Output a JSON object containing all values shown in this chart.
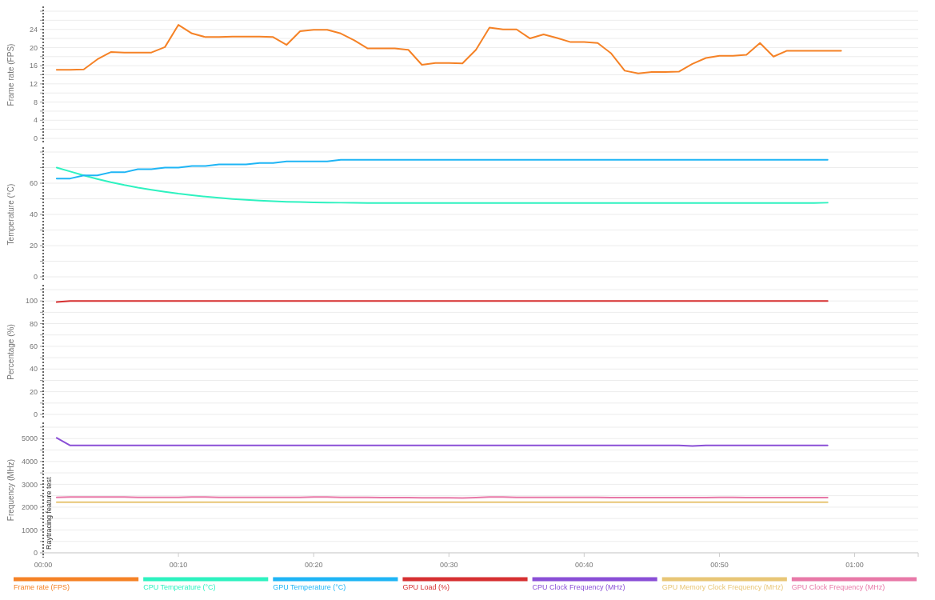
{
  "chart_data": [
    {
      "type": "line",
      "ylabel": "Frame rate (FPS)",
      "xlim": [
        0,
        64.7
      ],
      "ylim": [
        0,
        28
      ],
      "yticks": [
        0,
        {
          "value": 2,
          "label": null
        },
        4,
        {
          "value": 6,
          "label": null
        },
        8,
        {
          "value": 10,
          "label": null
        },
        12,
        {
          "value": 14,
          "label": null
        },
        16,
        {
          "value": 18,
          "label": null
        },
        20,
        {
          "value": 22,
          "label": null
        },
        24,
        {
          "value": 26,
          "label": null
        },
        {
          "value": 28,
          "label": null
        }
      ],
      "grid": "y",
      "legend": "bottom",
      "tick_labels": "y",
      "marker": "none",
      "ref_lines": [
        {
          "axis": "x",
          "value": 0,
          "line_style": "dotted",
          "color": "#333333"
        }
      ],
      "x": [
        1,
        2,
        3,
        4,
        5,
        6,
        7,
        8,
        9,
        10,
        11,
        12,
        13,
        14,
        15,
        16,
        17,
        18,
        19,
        20,
        21,
        22,
        23,
        24,
        25,
        26,
        27,
        28,
        29,
        30,
        31,
        32,
        33,
        34,
        35,
        36,
        37,
        38,
        39,
        40,
        41,
        42,
        43,
        44,
        45,
        46,
        47,
        48,
        49,
        50,
        51,
        52,
        53,
        54,
        55,
        56,
        57,
        58,
        59
      ],
      "series": [
        {
          "name": "Frame rate (FPS)",
          "color": "#f58226",
          "values": [
            15.1,
            15.1,
            15.2,
            17.4,
            19.0,
            18.9,
            18.9,
            18.9,
            20.1,
            25.0,
            23.1,
            22.3,
            22.3,
            22.4,
            22.4,
            22.4,
            22.3,
            20.6,
            23.6,
            23.9,
            23.9,
            23.1,
            21.6,
            19.8,
            19.8,
            19.8,
            19.5,
            16.2,
            16.6,
            16.6,
            16.5,
            19.5,
            24.4,
            24.0,
            24.0,
            22.0,
            22.9,
            22.1,
            21.2,
            21.2,
            21.0,
            18.7,
            14.9,
            14.3,
            14.6,
            14.6,
            14.7,
            16.4,
            17.7,
            18.2,
            18.2,
            18.4,
            21.0,
            18.0,
            19.3,
            19.3,
            19.3,
            19.3,
            19.3
          ]
        }
      ]
    },
    {
      "type": "line",
      "ylabel": "Temperature (°C)",
      "xlim": [
        0,
        64.7
      ],
      "ylim": [
        0,
        80
      ],
      "yticks": [
        0,
        {
          "value": 10,
          "label": null
        },
        20,
        {
          "value": 30,
          "label": null
        },
        40,
        {
          "value": 50,
          "label": null
        },
        60,
        {
          "value": 70,
          "label": null
        },
        {
          "value": 80,
          "label": null
        }
      ],
      "grid": "y",
      "legend": "bottom",
      "tick_labels": "y",
      "marker": "none",
      "ref_lines": [
        {
          "axis": "x",
          "value": 0,
          "line_style": "dotted",
          "color": "#333333"
        }
      ],
      "x": [
        1,
        2,
        3,
        4,
        5,
        6,
        7,
        8,
        9,
        10,
        11,
        12,
        13,
        14,
        15,
        16,
        17,
        18,
        19,
        20,
        21,
        22,
        23,
        24,
        25,
        26,
        27,
        28,
        29,
        30,
        31,
        32,
        33,
        34,
        35,
        36,
        37,
        38,
        39,
        40,
        41,
        42,
        43,
        44,
        45,
        46,
        47,
        48,
        49,
        50,
        51,
        52,
        53,
        54,
        55,
        56,
        57,
        58
      ],
      "series": [
        {
          "name": "CPU Temperature (°C)",
          "color": "#2ef2c0",
          "values": [
            70,
            67.5,
            65,
            62.7,
            60.6,
            58.8,
            57.2,
            55.8,
            54.5,
            53.3,
            52.3,
            51.4,
            50.6,
            49.9,
            49.3,
            48.8,
            48.4,
            48.1,
            47.9,
            47.7,
            47.6,
            47.5,
            47.4,
            47.3,
            47.3,
            47.3,
            47.3,
            47.3,
            47.3,
            47.3,
            47.3,
            47.3,
            47.3,
            47.3,
            47.3,
            47.3,
            47.3,
            47.3,
            47.3,
            47.3,
            47.3,
            47.3,
            47.3,
            47.3,
            47.3,
            47.3,
            47.3,
            47.3,
            47.3,
            47.3,
            47.3,
            47.3,
            47.3,
            47.3,
            47.3,
            47.3,
            47.3,
            47.5
          ]
        },
        {
          "name": "GPU Temperature (°C)",
          "color": "#1fb5f5",
          "values": [
            63,
            63,
            65,
            65,
            67,
            67,
            69,
            69,
            70,
            70,
            71,
            71,
            72,
            72,
            72,
            73,
            73,
            74,
            74,
            74,
            74,
            75,
            75,
            75,
            75,
            75,
            75,
            75,
            75,
            75,
            75,
            75,
            75,
            75,
            75,
            75,
            75,
            75,
            75,
            75,
            75,
            75,
            75,
            75,
            75,
            75,
            75,
            75,
            75,
            75,
            75,
            75,
            75,
            75,
            75,
            75,
            75,
            75
          ]
        }
      ]
    },
    {
      "type": "line",
      "ylabel": "Percentage (%)",
      "xlim": [
        0,
        64.7
      ],
      "ylim": [
        0,
        110
      ],
      "yticks": [
        0,
        {
          "value": 10,
          "label": null
        },
        20,
        {
          "value": 30,
          "label": null
        },
        40,
        {
          "value": 50,
          "label": null
        },
        60,
        {
          "value": 70,
          "label": null
        },
        80,
        {
          "value": 90,
          "label": null
        },
        100,
        {
          "value": 110,
          "label": null
        }
      ],
      "grid": "y",
      "legend": "bottom",
      "tick_labels": "y",
      "marker": "none",
      "ref_lines": [
        {
          "axis": "x",
          "value": 0,
          "line_style": "dotted",
          "color": "#333333"
        }
      ],
      "x": [
        1,
        2,
        3,
        4,
        5,
        6,
        7,
        8,
        9,
        10,
        11,
        12,
        13,
        14,
        15,
        16,
        17,
        18,
        19,
        20,
        21,
        22,
        23,
        24,
        25,
        26,
        27,
        28,
        29,
        30,
        31,
        32,
        33,
        34,
        35,
        36,
        37,
        38,
        39,
        40,
        41,
        42,
        43,
        44,
        45,
        46,
        47,
        48,
        49,
        50,
        51,
        52,
        53,
        54,
        55,
        56,
        57,
        58
      ],
      "series": [
        {
          "name": "GPU Load (%)",
          "color": "#d63031",
          "values": [
            99,
            100,
            100,
            100,
            100,
            100,
            100,
            100,
            100,
            100,
            100,
            100,
            100,
            100,
            100,
            100,
            100,
            100,
            100,
            100,
            100,
            100,
            100,
            100,
            100,
            100,
            100,
            100,
            100,
            100,
            100,
            100,
            100,
            100,
            100,
            100,
            100,
            100,
            100,
            100,
            100,
            100,
            100,
            100,
            100,
            100,
            100,
            100,
            100,
            100,
            100,
            100,
            100,
            100,
            100,
            100,
            100,
            100
          ]
        }
      ]
    },
    {
      "type": "line",
      "ylabel": "Frequency (MHz)",
      "xlim": [
        0,
        64.7
      ],
      "xticks": [
        {
          "value": 0,
          "label": "00:00"
        },
        {
          "value": 10,
          "label": "00:10"
        },
        {
          "value": 20,
          "label": "00:20"
        },
        {
          "value": 30,
          "label": "00:30"
        },
        {
          "value": 40,
          "label": "00:40"
        },
        {
          "value": 50,
          "label": "00:50"
        },
        {
          "value": 60,
          "label": "01:00"
        }
      ],
      "ylim": [
        0,
        5500
      ],
      "yticks": [
        0,
        {
          "value": 500,
          "label": null
        },
        1000,
        {
          "value": 1500,
          "label": null
        },
        2000,
        {
          "value": 2500,
          "label": null
        },
        3000,
        {
          "value": 3500,
          "label": null
        },
        4000,
        {
          "value": 4500,
          "label": null
        },
        5000,
        {
          "value": 5500,
          "label": null
        }
      ],
      "grid": "y",
      "legend": "bottom",
      "marker": "none",
      "ref_lines": [
        {
          "axis": "x",
          "value": 0,
          "label": "Raytracing feature test",
          "line_style": "dotted",
          "color": "#333333"
        }
      ],
      "x": [
        1,
        2,
        3,
        4,
        5,
        6,
        7,
        8,
        9,
        10,
        11,
        12,
        13,
        14,
        15,
        16,
        17,
        18,
        19,
        20,
        21,
        22,
        23,
        24,
        25,
        26,
        27,
        28,
        29,
        30,
        31,
        32,
        33,
        34,
        35,
        36,
        37,
        38,
        39,
        40,
        41,
        42,
        43,
        44,
        45,
        46,
        47,
        48,
        49,
        50,
        51,
        52,
        53,
        54,
        55,
        56,
        57,
        58
      ],
      "series": [
        {
          "name": "CPU Clock Frequency (MHz)",
          "color": "#8a4fd6",
          "values": [
            5030,
            4700,
            4700,
            4700,
            4700,
            4700,
            4700,
            4700,
            4700,
            4700,
            4700,
            4700,
            4700,
            4700,
            4700,
            4700,
            4700,
            4700,
            4700,
            4700,
            4700,
            4700,
            4700,
            4700,
            4700,
            4700,
            4700,
            4700,
            4700,
            4700,
            4700,
            4700,
            4700,
            4700,
            4700,
            4700,
            4700,
            4700,
            4700,
            4700,
            4700,
            4700,
            4700,
            4700,
            4700,
            4700,
            4700,
            4680,
            4700,
            4700,
            4700,
            4700,
            4700,
            4700,
            4700,
            4700,
            4700,
            4700
          ]
        },
        {
          "name": "GPU Memory Clock Frequency (MHz)",
          "color": "#e8c676",
          "values": [
            2220,
            2220,
            2220,
            2220,
            2220,
            2220,
            2220,
            2220,
            2220,
            2220,
            2220,
            2220,
            2220,
            2220,
            2220,
            2220,
            2220,
            2220,
            2220,
            2220,
            2220,
            2220,
            2220,
            2220,
            2220,
            2220,
            2220,
            2220,
            2220,
            2220,
            2220,
            2220,
            2220,
            2220,
            2220,
            2220,
            2220,
            2220,
            2220,
            2220,
            2220,
            2220,
            2220,
            2220,
            2220,
            2220,
            2220,
            2220,
            2220,
            2220,
            2220,
            2220,
            2220,
            2220,
            2220,
            2220,
            2220,
            2220
          ]
        },
        {
          "name": "GPU Clock Frequency (MHz)",
          "color": "#e879a8",
          "values": [
            2430,
            2440,
            2440,
            2440,
            2440,
            2440,
            2430,
            2430,
            2430,
            2430,
            2440,
            2440,
            2430,
            2430,
            2430,
            2430,
            2430,
            2430,
            2430,
            2440,
            2440,
            2430,
            2430,
            2430,
            2420,
            2420,
            2420,
            2410,
            2410,
            2410,
            2400,
            2420,
            2440,
            2440,
            2430,
            2430,
            2430,
            2430,
            2430,
            2430,
            2430,
            2420,
            2420,
            2420,
            2420,
            2420,
            2420,
            2420,
            2420,
            2430,
            2430,
            2420,
            2420,
            2420,
            2420,
            2420,
            2420,
            2420
          ]
        }
      ]
    }
  ]
}
